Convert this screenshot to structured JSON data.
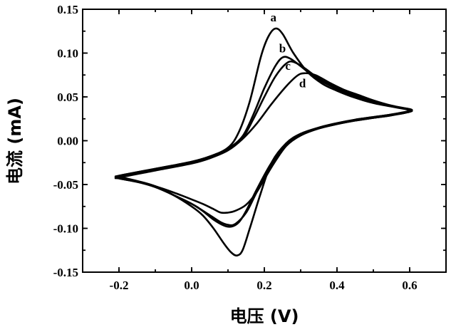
{
  "chart_data": {
    "type": "line",
    "xlabel": "电压 (V)",
    "ylabel": "电流 (mA)",
    "xlim": [
      -0.3,
      0.7
    ],
    "ylim": [
      -0.15,
      0.15
    ],
    "xticks": [
      -0.2,
      0.0,
      0.2,
      0.4,
      0.6
    ],
    "xtick_labels": [
      "-0.2",
      "0.0",
      "0.2",
      "0.4",
      "0.6"
    ],
    "yticks": [
      -0.15,
      -0.1,
      -0.05,
      0.0,
      0.05,
      0.1,
      0.15
    ],
    "ytick_labels": [
      "-0.15",
      "-0.10",
      "-0.05",
      "0.00",
      "0.05",
      "0.10",
      "0.15"
    ],
    "grid": false,
    "series": [
      {
        "name": "a",
        "x": [
          -0.2,
          -0.1,
          0.0,
          0.05,
          0.1,
          0.13,
          0.16,
          0.19,
          0.21,
          0.23,
          0.25,
          0.28,
          0.32,
          0.36,
          0.4,
          0.45,
          0.5,
          0.55,
          0.6,
          0.6,
          0.55,
          0.5,
          0.45,
          0.4,
          0.35,
          0.3,
          0.26,
          0.22,
          0.19,
          0.16,
          0.14,
          0.125,
          0.11,
          0.09,
          0.06,
          0.03,
          0.0,
          -0.05,
          -0.1,
          -0.15,
          -0.2
        ],
        "y": [
          -0.04,
          -0.032,
          -0.024,
          -0.018,
          -0.008,
          0.01,
          0.045,
          0.095,
          0.118,
          0.128,
          0.122,
          0.1,
          0.078,
          0.065,
          0.057,
          0.049,
          0.043,
          0.039,
          0.036,
          0.034,
          0.03,
          0.027,
          0.024,
          0.02,
          0.015,
          0.008,
          -0.003,
          -0.025,
          -0.06,
          -0.1,
          -0.125,
          -0.131,
          -0.128,
          -0.118,
          -0.1,
          -0.085,
          -0.075,
          -0.062,
          -0.052,
          -0.046,
          -0.041
        ]
      },
      {
        "name": "b",
        "x": [
          -0.2,
          -0.1,
          0.0,
          0.05,
          0.1,
          0.14,
          0.17,
          0.2,
          0.23,
          0.25,
          0.27,
          0.3,
          0.34,
          0.38,
          0.42,
          0.46,
          0.5,
          0.55,
          0.6,
          0.6,
          0.55,
          0.5,
          0.45,
          0.4,
          0.35,
          0.3,
          0.26,
          0.22,
          0.18,
          0.15,
          0.13,
          0.11,
          0.09,
          0.06,
          0.03,
          0.0,
          -0.05,
          -0.1,
          -0.15,
          -0.2
        ],
        "y": [
          -0.04,
          -0.032,
          -0.024,
          -0.018,
          -0.009,
          0.005,
          0.03,
          0.06,
          0.085,
          0.095,
          0.094,
          0.085,
          0.072,
          0.063,
          0.055,
          0.049,
          0.044,
          0.039,
          0.035,
          0.033,
          0.029,
          0.026,
          0.023,
          0.019,
          0.014,
          0.006,
          -0.005,
          -0.025,
          -0.055,
          -0.08,
          -0.093,
          -0.098,
          -0.097,
          -0.09,
          -0.08,
          -0.072,
          -0.062,
          -0.052,
          -0.046,
          -0.042
        ]
      },
      {
        "name": "c",
        "x": [
          -0.2,
          -0.1,
          0.0,
          0.05,
          0.1,
          0.14,
          0.17,
          0.2,
          0.23,
          0.26,
          0.28,
          0.31,
          0.35,
          0.39,
          0.43,
          0.47,
          0.52,
          0.56,
          0.6,
          0.6,
          0.55,
          0.5,
          0.45,
          0.4,
          0.35,
          0.3,
          0.26,
          0.22,
          0.18,
          0.15,
          0.12,
          0.1,
          0.08,
          0.05,
          0.02,
          0.0,
          -0.05,
          -0.1,
          -0.15,
          -0.2
        ],
        "y": [
          -0.041,
          -0.033,
          -0.025,
          -0.019,
          -0.01,
          0.003,
          0.025,
          0.05,
          0.073,
          0.088,
          0.09,
          0.083,
          0.071,
          0.062,
          0.055,
          0.049,
          0.043,
          0.039,
          0.035,
          0.033,
          0.029,
          0.026,
          0.023,
          0.019,
          0.014,
          0.006,
          -0.006,
          -0.028,
          -0.058,
          -0.082,
          -0.095,
          -0.096,
          -0.093,
          -0.085,
          -0.077,
          -0.072,
          -0.062,
          -0.053,
          -0.047,
          -0.043
        ]
      },
      {
        "name": "d",
        "x": [
          -0.2,
          -0.1,
          0.0,
          0.05,
          0.1,
          0.14,
          0.18,
          0.22,
          0.26,
          0.29,
          0.31,
          0.34,
          0.38,
          0.42,
          0.46,
          0.5,
          0.55,
          0.6,
          0.6,
          0.55,
          0.5,
          0.45,
          0.4,
          0.35,
          0.3,
          0.26,
          0.22,
          0.18,
          0.15,
          0.12,
          0.1,
          0.08,
          0.06,
          0.03,
          0.0,
          -0.05,
          -0.1,
          -0.15,
          -0.2
        ],
        "y": [
          -0.042,
          -0.034,
          -0.026,
          -0.02,
          -0.011,
          0.002,
          0.02,
          0.042,
          0.062,
          0.074,
          0.077,
          0.075,
          0.066,
          0.058,
          0.052,
          0.046,
          0.04,
          0.036,
          0.034,
          0.03,
          0.027,
          0.024,
          0.02,
          0.015,
          0.007,
          -0.006,
          -0.03,
          -0.058,
          -0.073,
          -0.08,
          -0.082,
          -0.082,
          -0.078,
          -0.072,
          -0.067,
          -0.059,
          -0.052,
          -0.047,
          -0.043
        ]
      }
    ],
    "annotations": [
      {
        "text": "a",
        "x": 0.225,
        "y": 0.136
      },
      {
        "text": "b",
        "x": 0.25,
        "y": 0.101
      },
      {
        "text": "c",
        "x": 0.265,
        "y": 0.081
      },
      {
        "text": "d",
        "x": 0.305,
        "y": 0.061
      }
    ]
  }
}
